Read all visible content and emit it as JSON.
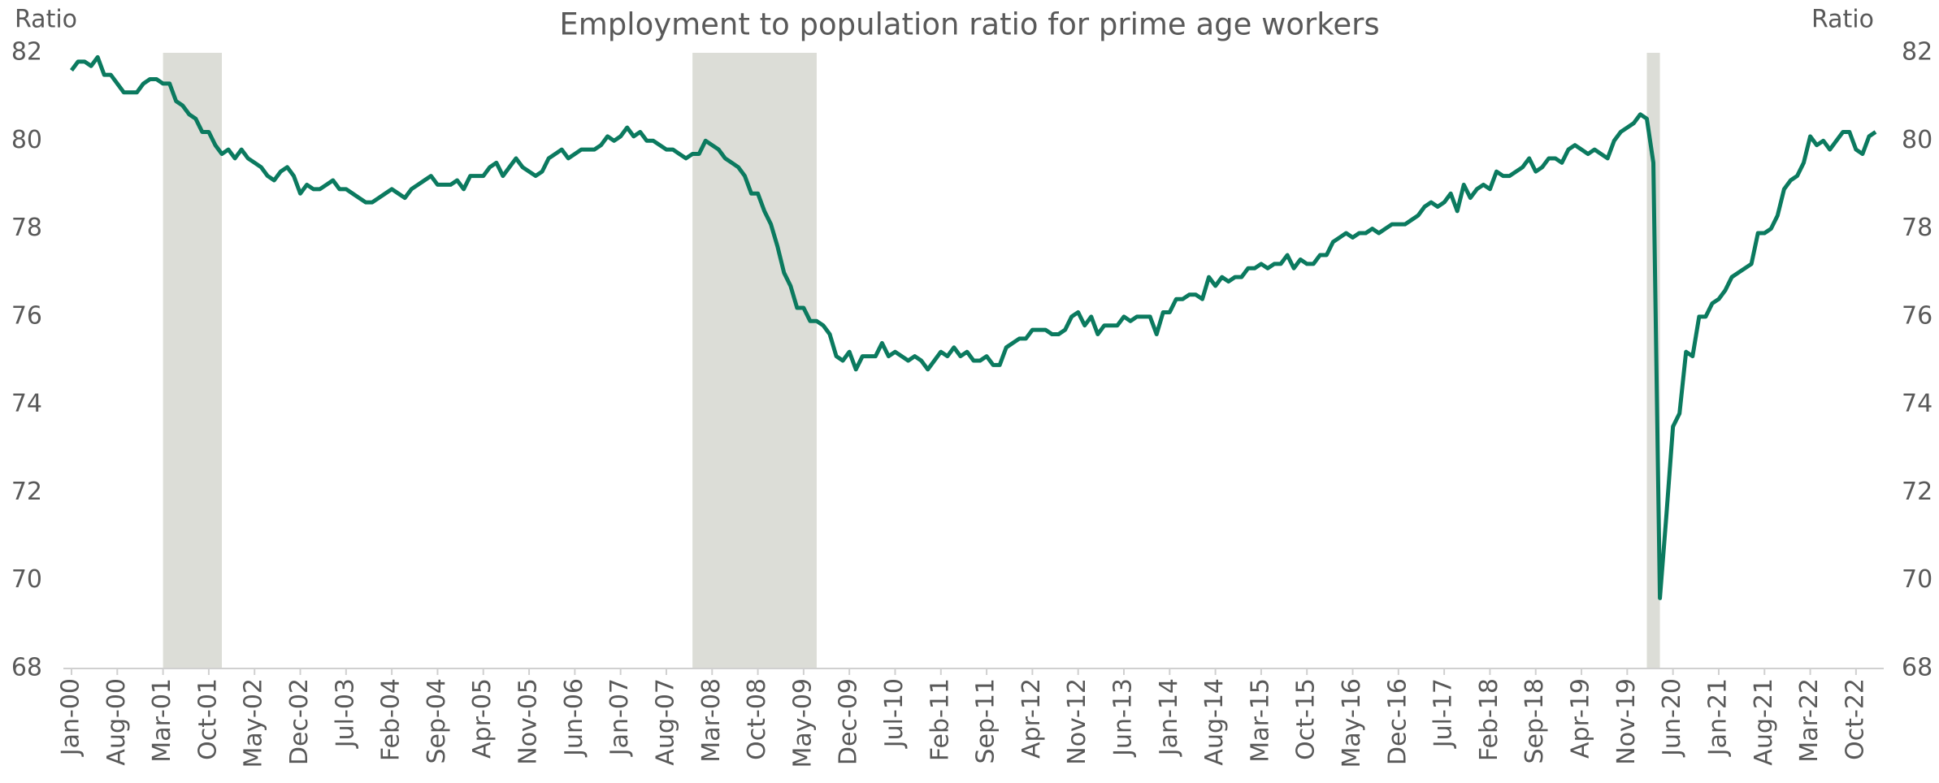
{
  "chart_data": {
    "type": "line",
    "title": "Employment to population ratio for prime age workers",
    "y_label": "Ratio",
    "y2_label": "Ratio",
    "ylim": [
      68,
      82
    ],
    "yticks": [
      68,
      70,
      72,
      74,
      76,
      78,
      80,
      82
    ],
    "y2lim": [
      68,
      82
    ],
    "y2ticks": [
      68,
      70,
      72,
      74,
      76,
      78,
      80,
      82
    ],
    "grid": false,
    "shade_color": "#dcddd7",
    "shaded_periods": [
      {
        "start": "Mar-01",
        "end": "Nov-01"
      },
      {
        "start": "Dec-07",
        "end": "Jun-09"
      },
      {
        "start": "Feb-20",
        "end": "Mar-20"
      }
    ],
    "categories": [
      "Jan-00",
      null,
      null,
      null,
      null,
      null,
      null,
      "Aug-00",
      null,
      null,
      null,
      null,
      null,
      null,
      "Mar-01",
      null,
      null,
      null,
      null,
      null,
      null,
      "Oct-01",
      null,
      null,
      null,
      null,
      null,
      null,
      "May-02",
      null,
      null,
      null,
      null,
      null,
      null,
      "Dec-02",
      null,
      null,
      null,
      null,
      null,
      null,
      "Jul-03",
      null,
      null,
      null,
      null,
      null,
      null,
      "Feb-04",
      null,
      null,
      null,
      null,
      null,
      null,
      "Sep-04",
      null,
      null,
      null,
      null,
      null,
      null,
      "Apr-05",
      null,
      null,
      null,
      null,
      null,
      null,
      "Nov-05",
      null,
      null,
      null,
      null,
      null,
      null,
      "Jun-06",
      null,
      null,
      null,
      null,
      null,
      null,
      "Jan-07",
      null,
      null,
      null,
      null,
      null,
      null,
      "Aug-07",
      null,
      null,
      null,
      null,
      null,
      null,
      "Mar-08",
      null,
      null,
      null,
      null,
      null,
      null,
      "Oct-08",
      null,
      null,
      null,
      null,
      null,
      null,
      "May-09",
      null,
      null,
      null,
      null,
      null,
      null,
      "Dec-09",
      null,
      null,
      null,
      null,
      null,
      null,
      "Jul-10",
      null,
      null,
      null,
      null,
      null,
      null,
      "Feb-11",
      null,
      null,
      null,
      null,
      null,
      null,
      "Sep-11",
      null,
      null,
      null,
      null,
      null,
      null,
      "Apr-12",
      null,
      null,
      null,
      null,
      null,
      null,
      "Nov-12",
      null,
      null,
      null,
      null,
      null,
      null,
      "Jun-13",
      null,
      null,
      null,
      null,
      null,
      null,
      "Jan-14",
      null,
      null,
      null,
      null,
      null,
      null,
      "Aug-14",
      null,
      null,
      null,
      null,
      null,
      null,
      "Mar-15",
      null,
      null,
      null,
      null,
      null,
      null,
      "Oct-15",
      null,
      null,
      null,
      null,
      null,
      null,
      "May-16",
      null,
      null,
      null,
      null,
      null,
      null,
      "Dec-16",
      null,
      null,
      null,
      null,
      null,
      null,
      "Jul-17",
      null,
      null,
      null,
      null,
      null,
      null,
      "Feb-18",
      null,
      null,
      null,
      null,
      null,
      null,
      "Sep-18",
      null,
      null,
      null,
      null,
      null,
      null,
      "Apr-19",
      null,
      null,
      null,
      null,
      null,
      null,
      "Nov-19",
      null,
      null,
      null,
      null,
      null,
      null,
      "Jun-20",
      null,
      null,
      null,
      null,
      null,
      null,
      "Jan-21",
      null,
      null,
      null,
      null,
      null,
      null,
      "Aug-21",
      null,
      null,
      null,
      null,
      null,
      null,
      "Mar-22",
      null,
      null,
      null,
      null,
      null,
      null,
      "Oct-22",
      null,
      null,
      null
    ],
    "series": [
      {
        "name": "Employment to population ratio",
        "color": "#0b7a5f",
        "values": [
          81.6,
          81.8,
          81.8,
          81.7,
          81.9,
          81.5,
          81.5,
          81.3,
          81.1,
          81.1,
          81.1,
          81.3,
          81.4,
          81.4,
          81.3,
          81.3,
          80.9,
          80.8,
          80.6,
          80.5,
          80.2,
          80.2,
          79.9,
          79.7,
          79.8,
          79.6,
          79.8,
          79.6,
          79.5,
          79.4,
          79.2,
          79.1,
          79.3,
          79.4,
          79.2,
          78.8,
          79.0,
          78.9,
          78.9,
          79.0,
          79.1,
          78.9,
          78.9,
          78.8,
          78.7,
          78.6,
          78.6,
          78.7,
          78.8,
          78.9,
          78.8,
          78.7,
          78.9,
          79.0,
          79.1,
          79.2,
          79.0,
          79.0,
          79.0,
          79.1,
          78.9,
          79.2,
          79.2,
          79.2,
          79.4,
          79.5,
          79.2,
          79.4,
          79.6,
          79.4,
          79.3,
          79.2,
          79.3,
          79.6,
          79.7,
          79.8,
          79.6,
          79.7,
          79.8,
          79.8,
          79.8,
          79.9,
          80.1,
          80.0,
          80.1,
          80.3,
          80.1,
          80.2,
          80.0,
          80.0,
          79.9,
          79.8,
          79.8,
          79.7,
          79.6,
          79.7,
          79.7,
          80.0,
          79.9,
          79.8,
          79.6,
          79.5,
          79.4,
          79.2,
          78.8,
          78.8,
          78.4,
          78.1,
          77.6,
          77.0,
          76.7,
          76.2,
          76.2,
          75.9,
          75.9,
          75.8,
          75.6,
          75.1,
          75.0,
          75.2,
          74.8,
          75.1,
          75.1,
          75.1,
          75.4,
          75.1,
          75.2,
          75.1,
          75.0,
          75.1,
          75.0,
          74.8,
          75.0,
          75.2,
          75.1,
          75.3,
          75.1,
          75.2,
          75.0,
          75.0,
          75.1,
          74.9,
          74.9,
          75.3,
          75.4,
          75.5,
          75.5,
          75.7,
          75.7,
          75.7,
          75.6,
          75.6,
          75.7,
          76.0,
          76.1,
          75.8,
          76.0,
          75.6,
          75.8,
          75.8,
          75.8,
          76.0,
          75.9,
          76.0,
          76.0,
          76.0,
          75.6,
          76.1,
          76.1,
          76.4,
          76.4,
          76.5,
          76.5,
          76.4,
          76.9,
          76.7,
          76.9,
          76.8,
          76.9,
          76.9,
          77.1,
          77.1,
          77.2,
          77.1,
          77.2,
          77.2,
          77.4,
          77.1,
          77.3,
          77.2,
          77.2,
          77.4,
          77.4,
          77.7,
          77.8,
          77.9,
          77.8,
          77.9,
          77.9,
          78.0,
          77.9,
          78.0,
          78.1,
          78.1,
          78.1,
          78.2,
          78.3,
          78.5,
          78.6,
          78.5,
          78.6,
          78.8,
          78.4,
          79.0,
          78.7,
          78.9,
          79.0,
          78.9,
          79.3,
          79.2,
          79.2,
          79.3,
          79.4,
          79.6,
          79.3,
          79.4,
          79.6,
          79.6,
          79.5,
          79.8,
          79.9,
          79.8,
          79.7,
          79.8,
          79.7,
          79.6,
          80.0,
          80.2,
          80.3,
          80.4,
          80.6,
          80.5,
          79.5,
          69.6,
          71.5,
          73.5,
          73.8,
          75.2,
          75.1,
          76.0,
          76.0,
          76.3,
          76.4,
          76.6,
          76.9,
          77.0,
          77.1,
          77.2,
          77.9,
          77.9,
          78.0,
          78.3,
          78.9,
          79.1,
          79.2,
          79.5,
          80.1,
          79.9,
          80.0,
          79.8,
          80.0,
          80.2,
          80.2,
          79.8,
          79.7,
          80.1,
          80.2
        ]
      }
    ]
  }
}
